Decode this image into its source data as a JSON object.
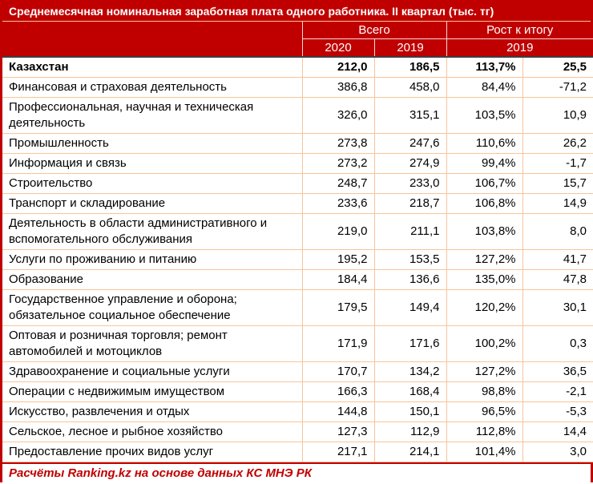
{
  "chart_data": {
    "type": "table",
    "title": "Среднемесячная номинальная заработная плата одного работника. II квартал (тыс. тг)",
    "header": {
      "total_group": "Всего",
      "growth_group": "Рост к итогу",
      "total_cols": [
        "2020",
        "2019"
      ],
      "growth_col": "2019"
    },
    "rows": [
      {
        "label": "Казахстан",
        "total_2020": "212,0",
        "total_2019": "186,5",
        "growth_pct": "113,7%",
        "growth_abs": "25,5",
        "is_total": true
      },
      {
        "label": "Финансовая и страховая деятельность",
        "total_2020": "386,8",
        "total_2019": "458,0",
        "growth_pct": "84,4%",
        "growth_abs": "-71,2",
        "is_total": false
      },
      {
        "label": "Профессиональная, научная и техническая деятельность",
        "total_2020": "326,0",
        "total_2019": "315,1",
        "growth_pct": "103,5%",
        "growth_abs": "10,9",
        "is_total": false
      },
      {
        "label": "Промышленность",
        "total_2020": "273,8",
        "total_2019": "247,6",
        "growth_pct": "110,6%",
        "growth_abs": "26,2",
        "is_total": false
      },
      {
        "label": "Информация и связь",
        "total_2020": "273,2",
        "total_2019": "274,9",
        "growth_pct": "99,4%",
        "growth_abs": "-1,7",
        "is_total": false
      },
      {
        "label": "Строительство",
        "total_2020": "248,7",
        "total_2019": "233,0",
        "growth_pct": "106,7%",
        "growth_abs": "15,7",
        "is_total": false
      },
      {
        "label": "Транспорт и складирование",
        "total_2020": "233,6",
        "total_2019": "218,7",
        "growth_pct": "106,8%",
        "growth_abs": "14,9",
        "is_total": false
      },
      {
        "label": "Деятельность в области административного и вспомогательного обслуживания",
        "total_2020": "219,0",
        "total_2019": "211,1",
        "growth_pct": "103,8%",
        "growth_abs": "8,0",
        "is_total": false
      },
      {
        "label": "Услуги по проживанию и питанию",
        "total_2020": "195,2",
        "total_2019": "153,5",
        "growth_pct": "127,2%",
        "growth_abs": "41,7",
        "is_total": false
      },
      {
        "label": "Образование",
        "total_2020": "184,4",
        "total_2019": "136,6",
        "growth_pct": "135,0%",
        "growth_abs": "47,8",
        "is_total": false
      },
      {
        "label": "Государственное управление и оборона; обязательное социальное обеспечение",
        "total_2020": "179,5",
        "total_2019": "149,4",
        "growth_pct": "120,2%",
        "growth_abs": "30,1",
        "is_total": false
      },
      {
        "label": "Оптовая и розничная торговля; ремонт автомобилей и мотоциклов",
        "total_2020": "171,9",
        "total_2019": "171,6",
        "growth_pct": "100,2%",
        "growth_abs": "0,3",
        "is_total": false
      },
      {
        "label": "Здравоохранение и социальные услуги",
        "total_2020": "170,7",
        "total_2019": "134,2",
        "growth_pct": "127,2%",
        "growth_abs": "36,5",
        "is_total": false
      },
      {
        "label": "Операции с недвижимым имуществом",
        "total_2020": "166,3",
        "total_2019": "168,4",
        "growth_pct": "98,8%",
        "growth_abs": "-2,1",
        "is_total": false
      },
      {
        "label": "Искусство, развлечения и отдых",
        "total_2020": "144,8",
        "total_2019": "150,1",
        "growth_pct": "96,5%",
        "growth_abs": "-5,3",
        "is_total": false
      },
      {
        "label": "Сельское, лесное и рыбное хозяйство",
        "total_2020": "127,3",
        "total_2019": "112,9",
        "growth_pct": "112,8%",
        "growth_abs": "14,4",
        "is_total": false
      },
      {
        "label": "Предоставление прочих видов услуг",
        "total_2020": "217,1",
        "total_2019": "214,1",
        "growth_pct": "101,4%",
        "growth_abs": "3,0",
        "is_total": false
      }
    ],
    "footer": "Расчёты Ranking.kz на основе данных КС МНЭ РК",
    "layout_hints": {
      "header_background": "#C00000",
      "header_text_color": "#FFFFFF",
      "body_border_color": "#F9C499",
      "frame_border_color": "#C00000",
      "footer_text_color": "#C00000"
    }
  }
}
